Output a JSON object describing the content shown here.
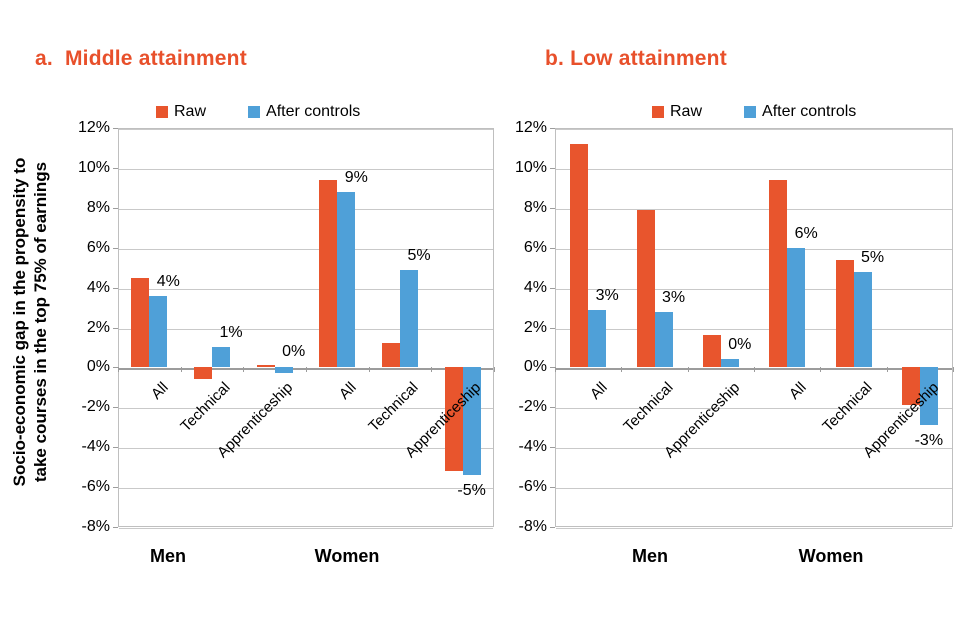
{
  "figure": {
    "background": "#ffffff",
    "accent_orange": "#E8552D",
    "accent_blue": "#4FA0D8",
    "title_color": "#E8502B",
    "gridline_color": "#C9C9C9",
    "axis_color": "#9C9C9C"
  },
  "chart_data": [
    {
      "type": "bar",
      "title": "a.  Middle attainment",
      "ylabel": "Socio-economic gap in the propensity to take courses in the top 75% of earnings",
      "ylabel_lines": [
        "Socio-economic gap in the propensity to",
        "take courses in the top 75% of earnings"
      ],
      "xlabel": "",
      "ylim": [
        -8,
        12
      ],
      "ytick_labels": [
        "12%",
        "10%",
        "8%",
        "6%",
        "4%",
        "2%",
        "0%",
        "-2%",
        "-4%",
        "-6%",
        "-8%"
      ],
      "grid": true,
      "legend_position": "top",
      "groups": [
        "Men",
        "Women"
      ],
      "categories": [
        "All",
        "Technical",
        "Apprenticeship",
        "All",
        "Technical",
        "Apprenticeship"
      ],
      "series": [
        {
          "name": "Raw",
          "color": "#E8552D",
          "values": [
            4.5,
            -0.6,
            0.1,
            9.4,
            1.2,
            -5.2
          ]
        },
        {
          "name": "After controls",
          "color": "#4FA0D8",
          "values": [
            3.6,
            1.0,
            -0.3,
            8.8,
            4.9,
            -5.4
          ]
        }
      ],
      "point_labels": [
        "4%",
        "1%",
        "0%",
        "9%",
        "5%",
        "-5%"
      ],
      "point_labels_series": "After controls"
    },
    {
      "type": "bar",
      "title": "b. Low attainment",
      "ylabel": "",
      "ylabel_lines": [],
      "xlabel": "",
      "ylim": [
        -8,
        12
      ],
      "ytick_labels": [
        "12%",
        "10%",
        "8%",
        "6%",
        "4%",
        "2%",
        "0%",
        "-2%",
        "-4%",
        "-6%",
        "-8%"
      ],
      "grid": true,
      "legend_position": "top",
      "groups": [
        "Men",
        "Women"
      ],
      "categories": [
        "All",
        "Technical",
        "Apprenticeship",
        "All",
        "Technical",
        "Apprenticeship"
      ],
      "series": [
        {
          "name": "Raw",
          "color": "#E8552D",
          "values": [
            11.2,
            7.9,
            1.6,
            9.4,
            5.4,
            -1.9
          ]
        },
        {
          "name": "After controls",
          "color": "#4FA0D8",
          "values": [
            2.9,
            2.8,
            0.4,
            6.0,
            4.8,
            -2.9
          ]
        }
      ],
      "point_labels": [
        "3%",
        "3%",
        "0%",
        "6%",
        "5%",
        "-3%"
      ],
      "point_labels_series": "After controls"
    }
  ]
}
